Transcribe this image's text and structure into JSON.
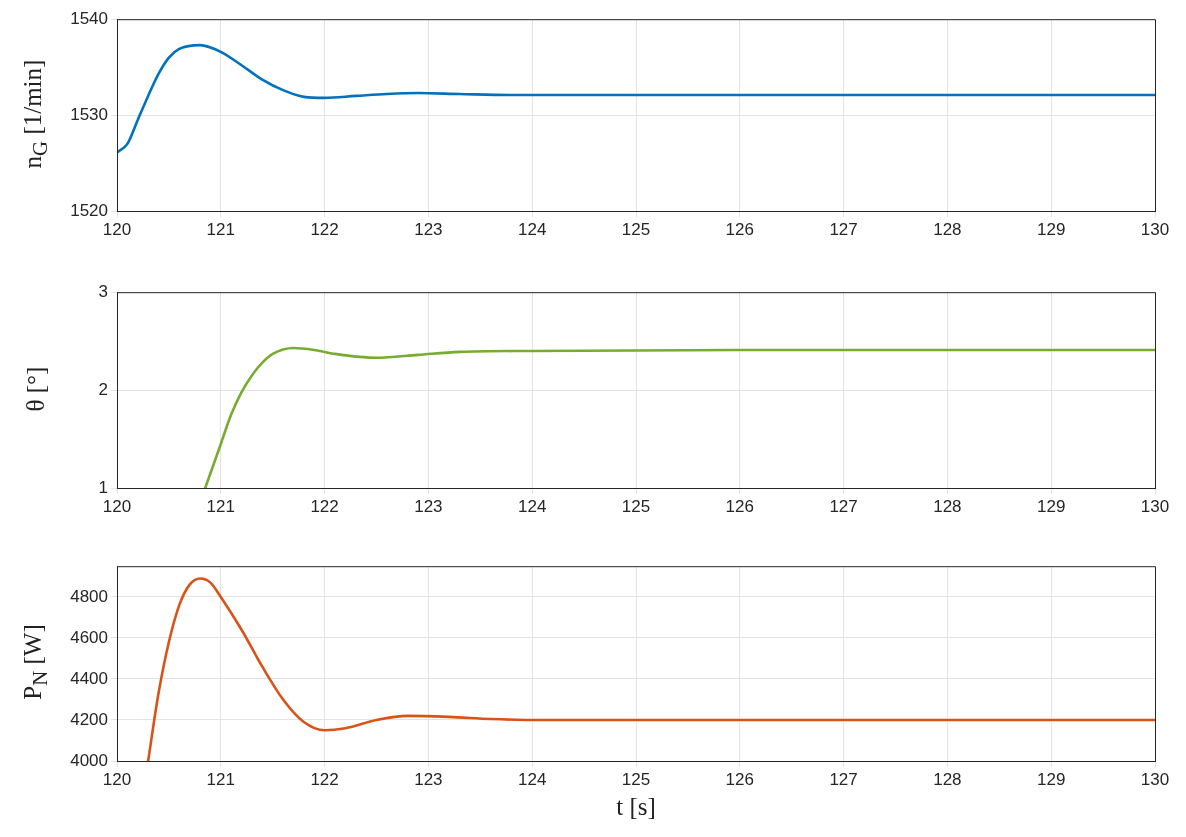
{
  "chart_data": [
    {
      "type": "line",
      "ylabel": "n$_{G}$ [1/min]",
      "color": "#0072bd",
      "line_style": "solid",
      "marker": "none",
      "grid": true,
      "x": [
        120,
        120.1,
        120.2,
        120.3,
        120.4,
        120.5,
        120.6,
        120.8,
        121,
        121.2,
        121.4,
        121.6,
        121.8,
        122,
        122.3,
        122.6,
        122.9,
        123.3,
        123.8,
        130
      ],
      "values": [
        1526.1,
        1527,
        1529.5,
        1532,
        1534.3,
        1536,
        1536.9,
        1537.3,
        1536.6,
        1535.2,
        1533.7,
        1532.6,
        1531.9,
        1531.8,
        1532,
        1532.2,
        1532.3,
        1532.2,
        1532.1,
        1532.1
      ],
      "xlim": [
        120,
        130
      ],
      "xticks": [
        120,
        121,
        122,
        123,
        124,
        125,
        126,
        127,
        128,
        129,
        130
      ],
      "ylim": [
        1520,
        1540
      ],
      "yticks": [
        1520,
        1530,
        1540
      ]
    },
    {
      "type": "line",
      "ylabel": "θ [°]",
      "color": "#77ac30",
      "line_style": "solid",
      "marker": "none",
      "grid": true,
      "x": [
        120.85,
        121,
        121.1,
        121.2,
        121.3,
        121.4,
        121.5,
        121.7,
        121.9,
        122.1,
        122.5,
        122.9,
        123.3,
        124,
        126,
        130
      ],
      "values": [
        1,
        1.45,
        1.75,
        1.98,
        2.15,
        2.28,
        2.37,
        2.43,
        2.41,
        2.37,
        2.33,
        2.36,
        2.39,
        2.4,
        2.41,
        2.41
      ],
      "xlim": [
        120,
        130
      ],
      "xticks": [
        120,
        121,
        122,
        123,
        124,
        125,
        126,
        127,
        128,
        129,
        130
      ],
      "ylim": [
        1,
        3
      ],
      "yticks": [
        1,
        2,
        3
      ]
    },
    {
      "type": "line",
      "ylabel": "P$_{N}$ [W]",
      "xlabel": "t [s]",
      "color": "#d95319",
      "line_style": "solid",
      "marker": "none",
      "grid": true,
      "x": [
        120.3,
        120.4,
        120.5,
        120.6,
        120.7,
        120.8,
        120.9,
        121,
        121.2,
        121.4,
        121.6,
        121.8,
        122,
        122.2,
        122.5,
        122.8,
        123.2,
        123.6,
        124,
        130
      ],
      "values": [
        4000,
        4330,
        4580,
        4760,
        4860,
        4890,
        4870,
        4800,
        4640,
        4460,
        4300,
        4190,
        4150,
        4160,
        4200,
        4220,
        4215,
        4205,
        4200,
        4200
      ],
      "xlim": [
        120,
        130
      ],
      "xticks": [
        120,
        121,
        122,
        123,
        124,
        125,
        126,
        127,
        128,
        129,
        130
      ],
      "ylim": [
        4000,
        4950
      ],
      "yticks": [
        4000,
        4200,
        4400,
        4600,
        4800
      ]
    }
  ]
}
